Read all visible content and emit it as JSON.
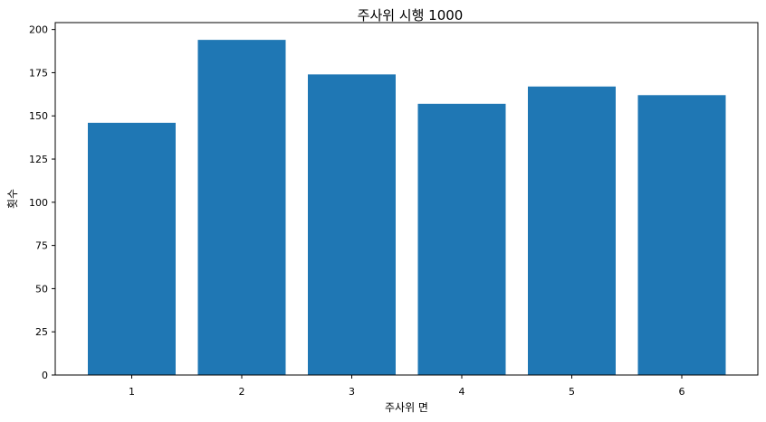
{
  "chart_data": {
    "type": "bar",
    "title": "주사위 시행 1000",
    "xlabel": "주사위 면",
    "ylabel": "횟수",
    "categories": [
      "1",
      "2",
      "3",
      "4",
      "5",
      "6"
    ],
    "values": [
      146,
      194,
      174,
      157,
      167,
      162
    ],
    "ylim": [
      0,
      204
    ],
    "yticks": [
      0,
      25,
      50,
      75,
      100,
      125,
      150,
      175,
      200
    ],
    "grid": false,
    "legend": "none",
    "bar_color": "#1f77b4"
  }
}
